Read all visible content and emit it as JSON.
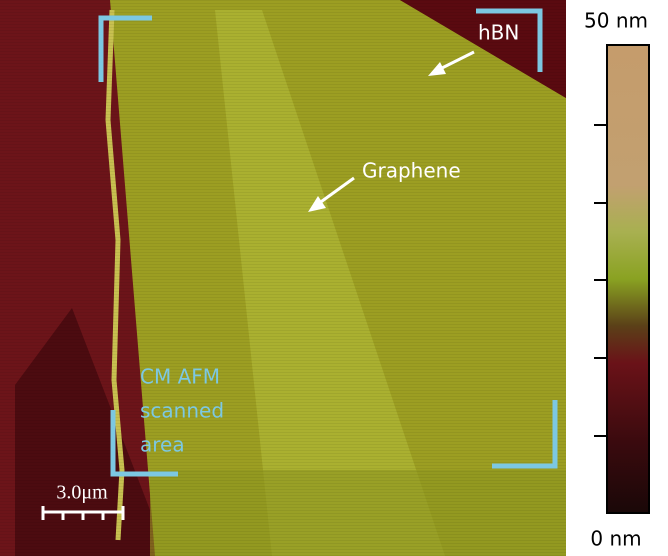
{
  "image": {
    "labels": {
      "hbn": "hBN",
      "graphene": "Graphene",
      "scan_area": [
        "CM AFM",
        "scanned",
        "area"
      ],
      "scale_bar": "3.0μm"
    },
    "colorbar": {
      "top": "50 nm",
      "bottom": "0 nm"
    }
  }
}
